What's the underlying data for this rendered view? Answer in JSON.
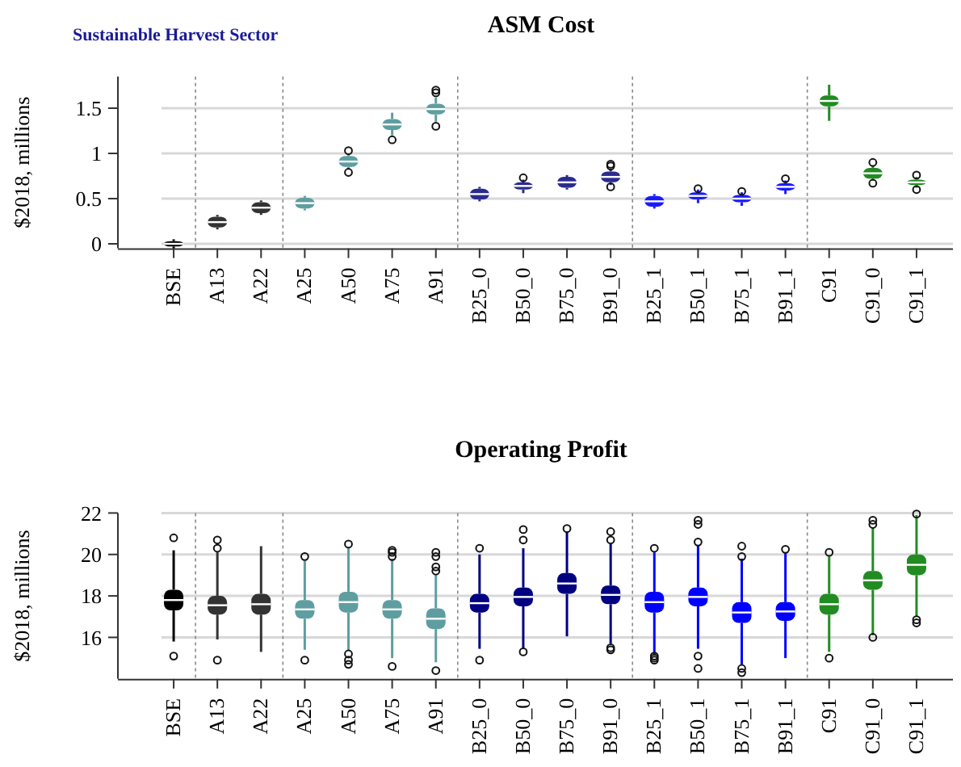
{
  "chart_data": [
    {
      "type": "box",
      "title": "ASM Cost",
      "ylabel": "$2018, millions",
      "annotations": [
        "Sustainable Harvest Sector"
      ],
      "categories": [
        "BSE",
        "A13",
        "A22",
        "A25",
        "A50",
        "A75",
        "A91",
        "B25_0",
        "B50_0",
        "B75_0",
        "B91_0",
        "B25_1",
        "B50_1",
        "B75_1",
        "B91_1",
        "C91",
        "C91_0",
        "C91_1"
      ],
      "colors": [
        "#000000",
        "#333333",
        "#333333",
        "#5f9ea0",
        "#5f9ea0",
        "#5f9ea0",
        "#5f9ea0",
        "#2b2b8f",
        "#2b2b8f",
        "#2b2b8f",
        "#2b2b8f",
        "#1a1aff",
        "#1a1aff",
        "#1a1aff",
        "#1a1aff",
        "#228b22",
        "#228b22",
        "#228b22"
      ],
      "boxes": [
        {
          "low": -0.05,
          "q1": -0.03,
          "median": 0,
          "q3": 0.03,
          "high": 0.05
        },
        {
          "low": 0.16,
          "q1": 0.18,
          "median": 0.24,
          "q3": 0.3,
          "high": 0.32
        },
        {
          "low": 0.32,
          "q1": 0.34,
          "median": 0.4,
          "q3": 0.46,
          "high": 0.48
        },
        {
          "low": 0.37,
          "q1": 0.39,
          "median": 0.45,
          "q3": 0.51,
          "high": 0.53
        },
        {
          "low": 0.82,
          "q1": 0.85,
          "median": 0.91,
          "q3": 0.97,
          "high": 1.0,
          "outliers": [
            0.79,
            1.03
          ]
        },
        {
          "low": 1.2,
          "q1": 1.26,
          "median": 1.32,
          "q3": 1.38,
          "high": 1.45,
          "outliers": [
            1.15
          ]
        },
        {
          "low": 1.35,
          "q1": 1.43,
          "median": 1.49,
          "q3": 1.55,
          "high": 1.62,
          "outliers": [
            1.3,
            1.67,
            1.7
          ]
        },
        {
          "low": 0.47,
          "q1": 0.49,
          "median": 0.55,
          "q3": 0.61,
          "high": 0.63
        },
        {
          "low": 0.56,
          "q1": 0.6,
          "median": 0.64,
          "q3": 0.68,
          "high": 0.71,
          "outliers": [
            0.73
          ]
        },
        {
          "low": 0.6,
          "q1": 0.62,
          "median": 0.68,
          "q3": 0.74,
          "high": 0.76
        },
        {
          "low": 0.65,
          "q1": 0.68,
          "median": 0.74,
          "q3": 0.8,
          "high": 0.83,
          "outliers": [
            0.63,
            0.86,
            0.88
          ]
        },
        {
          "low": 0.39,
          "q1": 0.41,
          "median": 0.47,
          "q3": 0.53,
          "high": 0.55
        },
        {
          "low": 0.45,
          "q1": 0.49,
          "median": 0.53,
          "q3": 0.57,
          "high": 0.6,
          "outliers": [
            0.61
          ]
        },
        {
          "low": 0.42,
          "q1": 0.46,
          "median": 0.5,
          "q3": 0.54,
          "high": 0.57,
          "outliers": [
            0.58
          ]
        },
        {
          "low": 0.55,
          "q1": 0.59,
          "median": 0.63,
          "q3": 0.67,
          "high": 0.7,
          "outliers": [
            0.72
          ]
        },
        {
          "low": 1.36,
          "q1": 1.52,
          "median": 1.58,
          "q3": 1.64,
          "high": 1.76
        },
        {
          "low": 0.7,
          "q1": 0.72,
          "median": 0.78,
          "q3": 0.84,
          "high": 0.86,
          "outliers": [
            0.67,
            0.9
          ]
        },
        {
          "low": 0.62,
          "q1": 0.65,
          "median": 0.68,
          "q3": 0.71,
          "high": 0.74,
          "outliers": [
            0.6,
            0.76
          ]
        }
      ],
      "ylim": [
        -0.05,
        1.85
      ],
      "yticks": [
        0,
        {
          "value": 0.5,
          "label": "0.5"
        },
        1,
        {
          "value": 1.5,
          "label": "1.5"
        }
      ],
      "grid": "y"
    },
    {
      "type": "box",
      "title": "Operating Profit",
      "ylabel": "$2018, millions",
      "categories": [
        "BSE",
        "A13",
        "A22",
        "A25",
        "A50",
        "A75",
        "A91",
        "B25_0",
        "B50_0",
        "B75_0",
        "B91_0",
        "B25_1",
        "B50_1",
        "B75_1",
        "B91_1",
        "C91",
        "C91_0",
        "C91_1"
      ],
      "colors": [
        "#000000",
        "#333333",
        "#333333",
        "#5f9ea0",
        "#5f9ea0",
        "#5f9ea0",
        "#5f9ea0",
        "#000080",
        "#000080",
        "#000080",
        "#000080",
        "#0000ff",
        "#0000ff",
        "#0000ff",
        "#0000ff",
        "#228b22",
        "#228b22",
        "#228b22"
      ],
      "boxes": [
        {
          "low": 15.8,
          "q1": 17.3,
          "median": 17.8,
          "q3": 18.3,
          "high": 20.2,
          "outliers": [
            15.1,
            20.8
          ]
        },
        {
          "low": 15.9,
          "q1": 17.1,
          "median": 17.55,
          "q3": 18.0,
          "high": 20.1,
          "outliers": [
            14.9,
            20.3,
            20.7
          ]
        },
        {
          "low": 15.3,
          "q1": 17.1,
          "median": 17.6,
          "q3": 18.1,
          "high": 20.4
        },
        {
          "low": 15.4,
          "q1": 16.9,
          "median": 17.35,
          "q3": 17.8,
          "high": 19.7,
          "outliers": [
            14.9,
            19.9
          ]
        },
        {
          "low": 15.4,
          "q1": 17.2,
          "median": 17.7,
          "q3": 18.2,
          "high": 20.3,
          "outliers": [
            14.7,
            14.9,
            15.2,
            20.5
          ]
        },
        {
          "low": 15.0,
          "q1": 16.9,
          "median": 17.35,
          "q3": 17.8,
          "high": 19.8,
          "outliers": [
            14.6,
            19.9,
            20.1,
            20.2
          ]
        },
        {
          "low": 14.8,
          "q1": 16.4,
          "median": 16.9,
          "q3": 17.4,
          "high": 19.0,
          "outliers": [
            14.4,
            19.2,
            19.4,
            19.9,
            20.1
          ]
        },
        {
          "low": 15.45,
          "q1": 17.2,
          "median": 17.65,
          "q3": 18.1,
          "high": 20.0,
          "outliers": [
            14.9,
            20.3
          ]
        },
        {
          "low": 15.45,
          "q1": 17.5,
          "median": 17.95,
          "q3": 18.4,
          "high": 20.3,
          "outliers": [
            15.3,
            20.7,
            21.2
          ]
        },
        {
          "low": 16.05,
          "q1": 18.1,
          "median": 18.6,
          "q3": 19.1,
          "high": 21.1,
          "outliers": [
            21.25
          ]
        },
        {
          "low": 15.7,
          "q1": 17.6,
          "median": 18.05,
          "q3": 18.5,
          "high": 20.5,
          "outliers": [
            15.4,
            15.5,
            20.7,
            21.1
          ]
        },
        {
          "low": 15.2,
          "q1": 17.2,
          "median": 17.7,
          "q3": 18.2,
          "high": 20.1,
          "outliers": [
            14.9,
            15.0,
            15.1,
            20.3
          ]
        },
        {
          "low": 15.45,
          "q1": 17.5,
          "median": 17.95,
          "q3": 18.4,
          "high": 20.45,
          "outliers": [
            14.5,
            15.1,
            20.6,
            21.45,
            21.65
          ]
        },
        {
          "low": 14.7,
          "q1": 16.7,
          "median": 17.2,
          "q3": 17.7,
          "high": 19.8,
          "outliers": [
            14.3,
            14.5,
            19.9,
            20.4
          ]
        },
        {
          "low": 15.0,
          "q1": 16.8,
          "median": 17.25,
          "q3": 17.7,
          "high": 20.1,
          "outliers": [
            20.25
          ]
        },
        {
          "low": 15.3,
          "q1": 17.1,
          "median": 17.6,
          "q3": 18.1,
          "high": 19.9,
          "outliers": [
            15.0,
            20.1
          ]
        },
        {
          "low": 16.1,
          "q1": 18.3,
          "median": 18.75,
          "q3": 19.2,
          "high": 21.3,
          "outliers": [
            16.0,
            21.45,
            21.65
          ]
        },
        {
          "low": 17.0,
          "q1": 19.0,
          "median": 19.5,
          "q3": 20.0,
          "high": 21.9,
          "outliers": [
            16.7,
            16.85,
            21.95
          ]
        }
      ],
      "ylim": [
        14,
        22
      ],
      "yticks": [
        16,
        18,
        20,
        22
      ],
      "grid": "y"
    }
  ]
}
